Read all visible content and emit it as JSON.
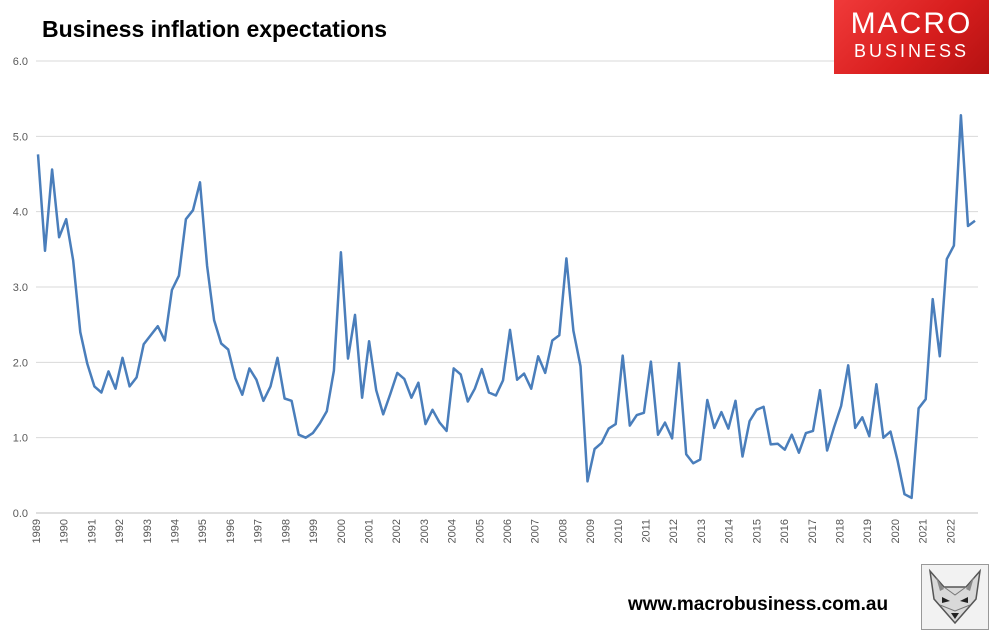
{
  "title": "Business inflation expectations",
  "logo": {
    "line1": "MACRO",
    "line2": "BUSINESS",
    "color": "#e02020"
  },
  "website": "www.macrobusiness.com.au",
  "badge_icon": "fox-head-icon",
  "chart_data": {
    "type": "line",
    "title": "Business inflation expectations",
    "xlabel": "",
    "ylabel": "",
    "ylim": [
      0,
      6
    ],
    "yticks": [
      "0.0",
      "1.0",
      "2.0",
      "3.0",
      "4.0",
      "5.0",
      "6.0"
    ],
    "x_start_year": 1989,
    "x_end_year": 2022,
    "xticks": [
      "1989",
      "1990",
      "1991",
      "1992",
      "1993",
      "1994",
      "1995",
      "1996",
      "1997",
      "1998",
      "1999",
      "2000",
      "2001",
      "2002",
      "2003",
      "2004",
      "2005",
      "2006",
      "2007",
      "2008",
      "2009",
      "2010",
      "2011",
      "2012",
      "2013",
      "2014",
      "2015",
      "2016",
      "2017",
      "2018",
      "2019",
      "2020",
      "2021",
      "2022"
    ],
    "grid": true,
    "line_color": "#4a7ebb",
    "series": [
      {
        "frequency": "quarterly",
        "values": [
          4.76,
          3.48,
          4.56,
          3.66,
          3.9,
          3.35,
          2.4,
          1.98,
          1.68,
          1.6,
          1.88,
          1.65,
          2.06,
          1.68,
          1.8,
          2.24,
          2.36,
          2.48,
          2.29,
          2.96,
          3.15,
          3.9,
          4.02,
          4.39,
          3.28,
          2.56,
          2.25,
          2.17,
          1.79,
          1.57,
          1.92,
          1.77,
          1.49,
          1.68,
          2.06,
          1.52,
          1.49,
          1.04,
          1.0,
          1.06,
          1.19,
          1.35,
          1.89,
          3.46,
          2.05,
          2.63,
          1.53,
          2.28,
          1.63,
          1.31,
          1.58,
          1.86,
          1.78,
          1.53,
          1.73,
          1.18,
          1.37,
          1.2,
          1.09,
          1.92,
          1.84,
          1.48,
          1.65,
          1.91,
          1.6,
          1.56,
          1.76,
          2.43,
          1.77,
          1.85,
          1.65,
          2.08,
          1.86,
          2.29,
          2.36,
          3.38,
          2.42,
          1.95,
          0.42,
          0.85,
          0.93,
          1.12,
          1.18,
          2.09,
          1.16,
          1.3,
          1.33,
          2.01,
          1.04,
          1.2,
          0.99,
          1.99,
          0.78,
          0.66,
          0.71,
          1.5,
          1.13,
          1.34,
          1.12,
          1.49,
          0.75,
          1.22,
          1.37,
          1.41,
          0.91,
          0.92,
          0.84,
          1.04,
          0.8,
          1.06,
          1.09,
          1.63,
          0.83,
          1.14,
          1.42,
          1.96,
          1.13,
          1.27,
          1.02,
          1.71,
          1.0,
          1.08,
          0.7,
          0.25,
          0.2,
          1.39,
          1.51,
          2.84,
          2.08,
          3.37,
          3.55,
          5.28,
          3.81,
          3.88
        ]
      }
    ]
  }
}
